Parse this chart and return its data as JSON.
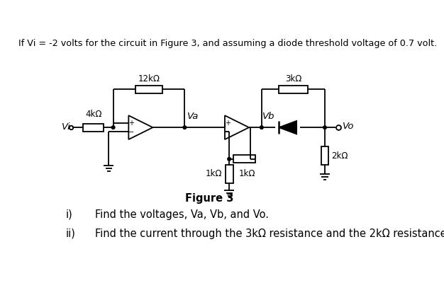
{
  "title_text": "If Vi = -2 volts for the circuit in Figure 3, and assuming a diode threshold voltage of 0.7 volt.",
  "figure_label": "Figure 3",
  "question_i": "Find the voltages, Va, Vb, and Vo.",
  "question_ii": "Find the current through the 3kΩ resistance and the 2kΩ resistance.",
  "background_color": "#ffffff",
  "text_color": "#000000",
  "line_color": "#000000"
}
